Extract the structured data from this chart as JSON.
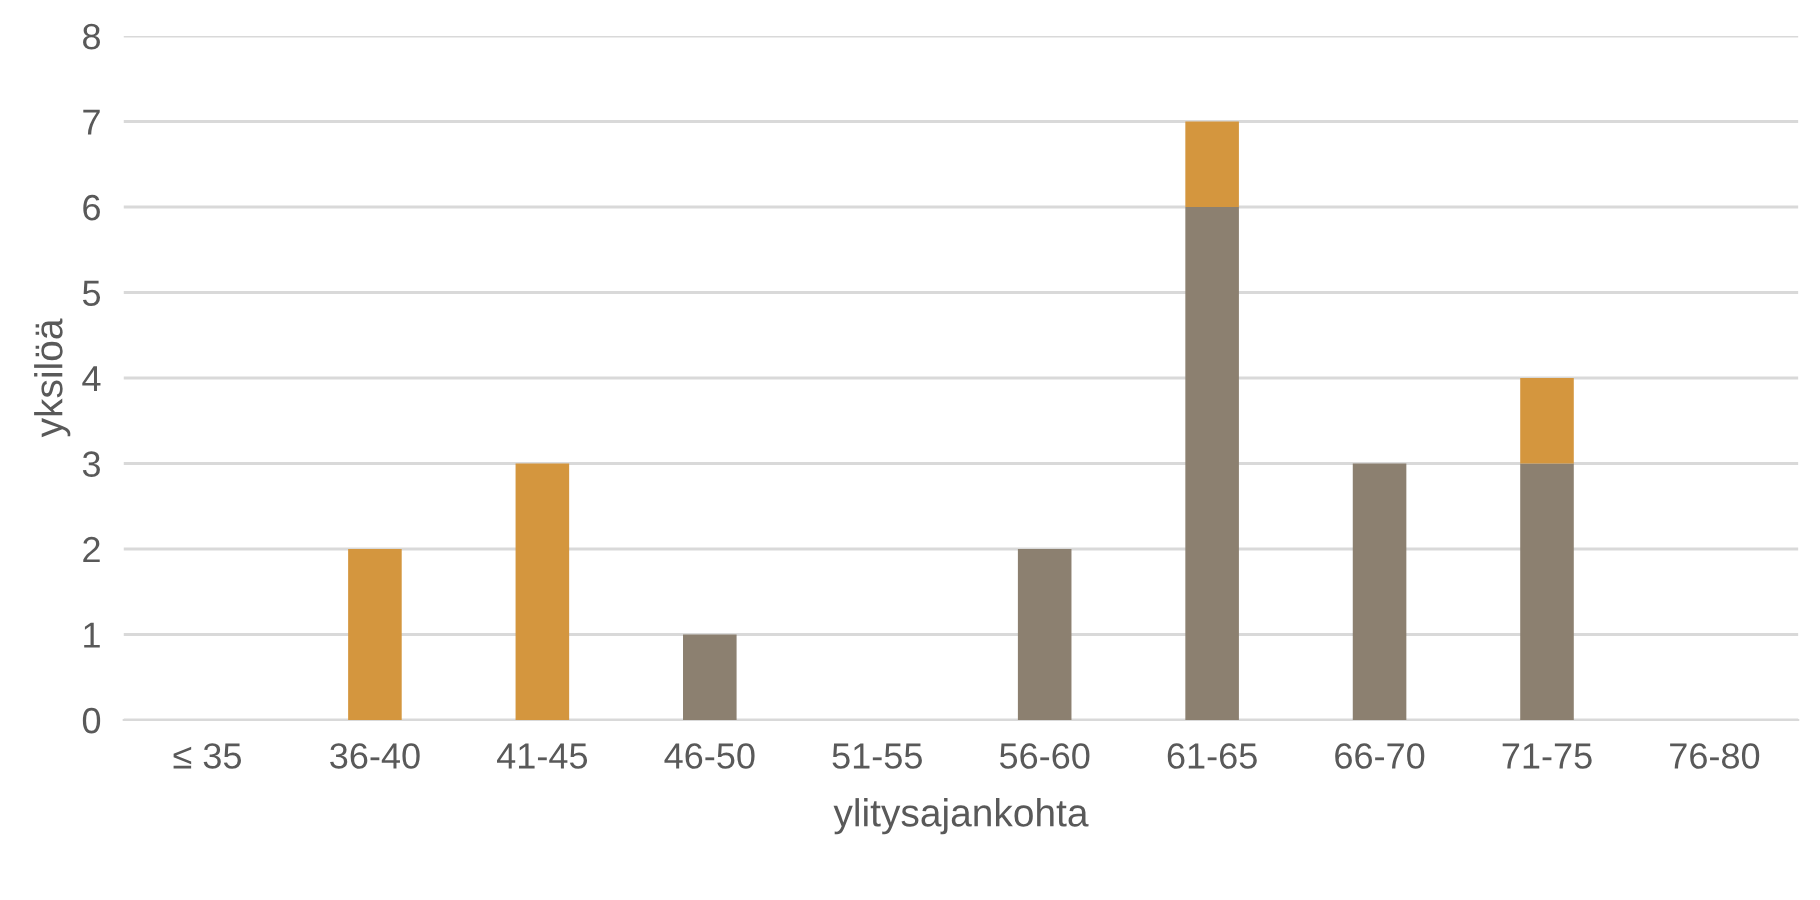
{
  "chart_data": {
    "type": "bar",
    "stacked": true,
    "xlabel": "ylitysajankohta",
    "ylabel": "yksilöä",
    "categories": [
      "≤ 35",
      "36-40",
      "41-45",
      "46-50",
      "51-55",
      "56-60",
      "61-65",
      "66-70",
      "71-75",
      "76-80"
    ],
    "series": [
      {
        "color": "#8c8070",
        "values": [
          0,
          0,
          0,
          1,
          0,
          2,
          6,
          3,
          3,
          0
        ]
      },
      {
        "color": "#d4963e",
        "values": [
          0,
          2,
          3,
          0,
          0,
          0,
          1,
          0,
          1,
          0
        ]
      }
    ],
    "ylim": [
      0,
      8
    ],
    "yticks": [
      0,
      1,
      2,
      3,
      4,
      5,
      6,
      7,
      8
    ],
    "grid": "y"
  }
}
